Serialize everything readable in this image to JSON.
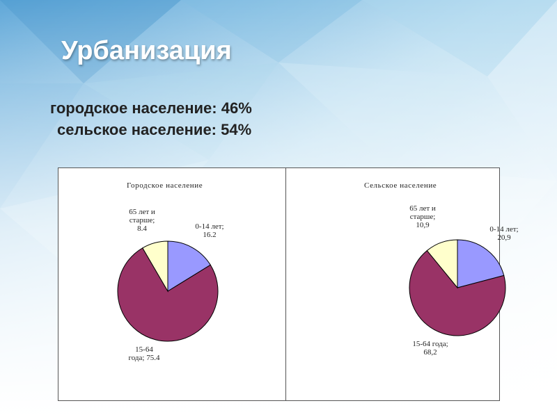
{
  "slide": {
    "title": "Урбанизация",
    "stat_urban": "городское население: 46%",
    "stat_rural": "сельское население: 54%"
  },
  "colors": {
    "blue": "#9999ff",
    "maroon": "#993366",
    "cream": "#ffffcc"
  },
  "chart_data": [
    {
      "type": "pie",
      "title": "Городское население",
      "slices": [
        {
          "name": "0-14 лет",
          "value": 16.2,
          "label": [
            "0-14 лет;",
            "16.2"
          ],
          "color": "#9999ff"
        },
        {
          "name": "15-64 года",
          "value": 75.4,
          "label": [
            "15-64",
            "года; 75.4"
          ],
          "color": "#993366"
        },
        {
          "name": "65 лет и старше",
          "value": 8.4,
          "label": [
            "65 лет и",
            "старше;",
            "8.4"
          ],
          "color": "#ffffcc"
        }
      ]
    },
    {
      "type": "pie",
      "title": "Сельское население",
      "slices": [
        {
          "name": "0-14 лет",
          "value": 20.9,
          "label": [
            "0-14 лет;",
            "20,9"
          ],
          "color": "#9999ff"
        },
        {
          "name": "15-64 года",
          "value": 68.2,
          "label": [
            "15-64 года;",
            "68,2"
          ],
          "color": "#993366"
        },
        {
          "name": "65 лет и старше",
          "value": 10.9,
          "label": [
            "65 лет и",
            "старше;",
            "10,9"
          ],
          "color": "#ffffcc"
        }
      ]
    }
  ]
}
